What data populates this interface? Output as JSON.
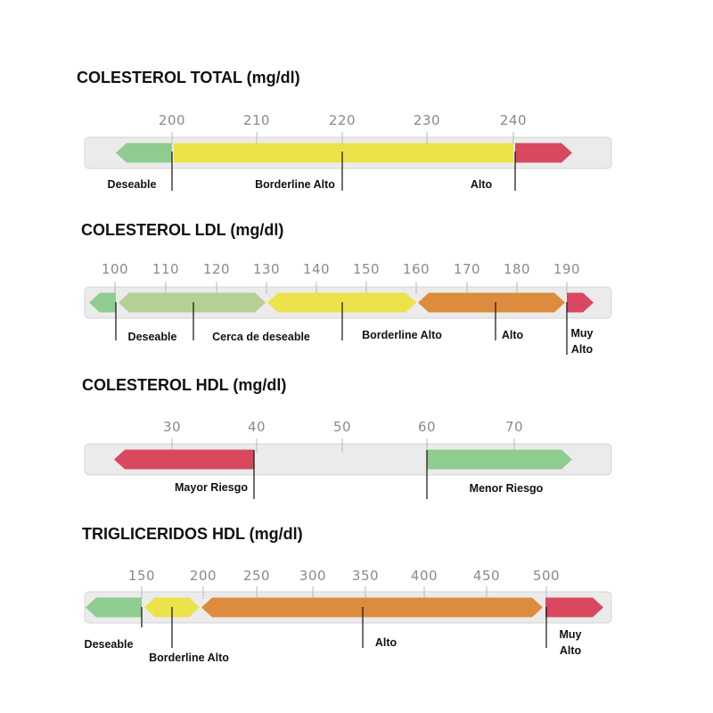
{
  "colors": {
    "deseable": "#8fcc8f",
    "cerca_deseable": "#b6cf95",
    "borderline": "#ece24a",
    "alto": "#dc8c3c",
    "riesgo": "#d8485e",
    "track": "#ebebeb",
    "track_border": "#d6d6d6",
    "tick_text": "#8a8a8a"
  },
  "panels": [
    {
      "title": "COLESTEROL TOTAL (mg/dl)",
      "ticks": [
        "200",
        "210",
        "220",
        "230",
        "240"
      ],
      "segments": [
        {
          "label": "Deseable",
          "color": "deseable",
          "shape": "left-arrow"
        },
        {
          "label": "Borderline Alto",
          "color": "borderline",
          "shape": "rect"
        },
        {
          "label": "Alto",
          "color": "riesgo",
          "shape": "right-arrow"
        }
      ]
    },
    {
      "title": "COLESTEROL LDL (mg/dl)",
      "ticks": [
        "100",
        "110",
        "120",
        "130",
        "140",
        "150",
        "160",
        "170",
        "180",
        "190"
      ],
      "segments": [
        {
          "label": "Deseable",
          "color": "deseable",
          "shape": "left-arrow"
        },
        {
          "label": "Cerca de deseable",
          "color": "cerca_deseable",
          "shape": "hexagon"
        },
        {
          "label": "Borderline Alto",
          "color": "borderline",
          "shape": "hexagon"
        },
        {
          "label": "Alto",
          "color": "alto",
          "shape": "hexagon"
        },
        {
          "label": [
            "Muy",
            "Alto"
          ],
          "color": "riesgo",
          "shape": "right-arrow"
        }
      ]
    },
    {
      "title": "COLESTEROL HDL (mg/dl)",
      "ticks": [
        "30",
        "40",
        "50",
        "60",
        "70"
      ],
      "segments": [
        {
          "label": "Mayor Riesgo",
          "color": "riesgo",
          "shape": "left-arrow"
        },
        {
          "label": "Menor Riesgo",
          "color": "deseable",
          "shape": "right-arrow"
        }
      ]
    },
    {
      "title": "TRIGLICERIDOS HDL (mg/dl)",
      "ticks": [
        "150",
        "200",
        "250",
        "300",
        "350",
        "400",
        "450",
        "500"
      ],
      "segments": [
        {
          "label": "Deseable",
          "color": "deseable",
          "shape": "left-arrow"
        },
        {
          "label": "Borderline Alto",
          "color": "borderline",
          "shape": "hexagon"
        },
        {
          "label": "Alto",
          "color": "alto",
          "shape": "hexagon"
        },
        {
          "label": [
            "Muy",
            "Alto"
          ],
          "color": "riesgo",
          "shape": "right-arrow"
        }
      ]
    }
  ]
}
